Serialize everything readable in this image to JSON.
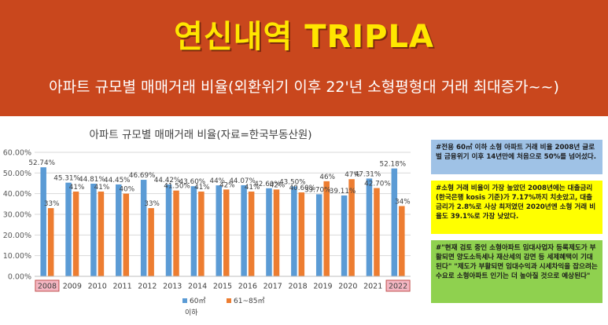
{
  "header": {
    "title": "연신내역 TRIPLA",
    "subtitle": "아파트 규모별 매매거래 비율(외환위기 이후 22'년 소형평형대 거래 최대증가~~)"
  },
  "notes": [
    "#전용 60㎡ 이하 소형 아파트 거래 비율 2008년 글로벌 금융위기 이후 14년만에 처음으로 50%를 넘어섰다.",
    "#소형 거래 비율이 가장 높았던 2008년에는 대출금리(한국은행 kosis 기준)가 7.17%까지 치솟았고, 대출금리가 2.8%로 사상 최저였던 2020년엔 소형 거래 비율도 39.1%로 가장 낮았다.",
    "#\"현재 검토 중인 소형아파트 임대사업자 등록제도가 부활되면 양도소득세나 재산세의 감면 등 세제혜택이 기대된다\" \"제도가 부활되면 임대수익과 시세차익을 잡으려는 수요로 소형아파트 인기는 더 높아질 것으로 예상된다\""
  ],
  "chart_data": {
    "type": "bar",
    "title": "아파트 규모별 매매거래 비율(자료=한국부동산원)",
    "categories": [
      "2008",
      "2009",
      "2010",
      "2011",
      "2012",
      "2013",
      "2014",
      "2015",
      "2016",
      "2017",
      "2018",
      "2019",
      "2020",
      "2021",
      "2022"
    ],
    "highlighted_categories": [
      "2008",
      "2022"
    ],
    "ylim": [
      0,
      60
    ],
    "yticks": [
      "0.00%",
      "10.00%",
      "20.00%",
      "30.00%",
      "40.00%",
      "50.00%",
      "60.00%"
    ],
    "xlabel": "",
    "series": [
      {
        "name": "60㎡ 이하",
        "color": "#5b9bd5",
        "values": [
          52.74,
          45.31,
          44.81,
          44.45,
          46.69,
          44.42,
          43.6,
          44,
          44.07,
          42.6,
          43.5,
          39.7,
          39.11,
          47.31,
          52.18
        ],
        "labels": [
          "52.74%",
          "45.31%",
          "44.81%",
          "44.45%",
          "46.69%",
          "44.42%",
          "43.60%",
          "44%",
          "44.07%",
          "42.60%",
          "43.50%",
          "39.70%",
          "39.11%",
          "47.31%",
          "52.18%"
        ]
      },
      {
        "name": "61~85㎡",
        "color": "#ed7d31",
        "values": [
          33,
          41,
          41,
          40,
          33,
          41.5,
          41,
          42,
          41,
          42,
          40.6,
          46,
          47,
          42.7,
          34
        ],
        "labels": [
          "33%",
          "41%",
          "41%",
          "40%",
          "33%",
          "41.50%",
          "41%",
          "42%",
          "41%",
          "42%",
          "40.60%",
          "46%",
          "47%",
          "42.70%",
          "34%"
        ]
      }
    ]
  }
}
